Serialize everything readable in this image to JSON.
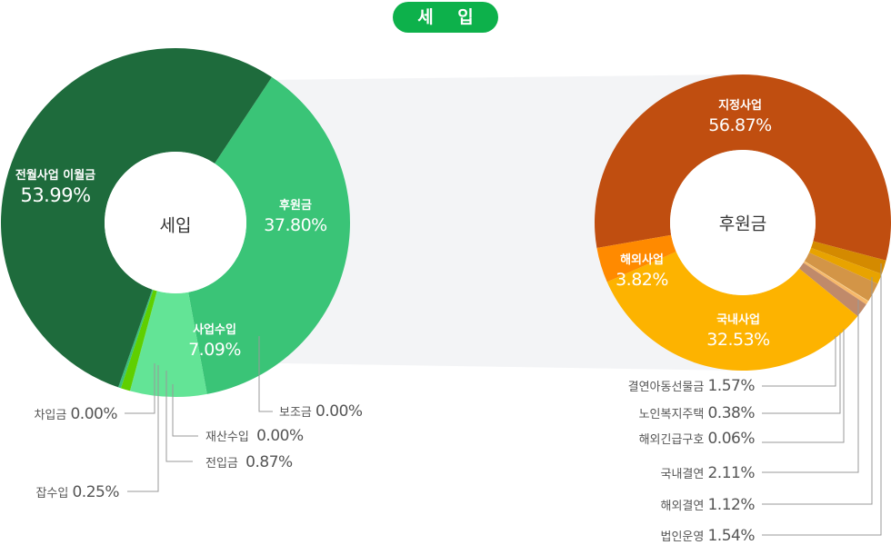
{
  "title": "세 입",
  "chart_data": [
    {
      "type": "pie",
      "donut": true,
      "title": "세입",
      "slices": [
        {
          "name": "후원금",
          "value": 37.8,
          "label": "37.80%",
          "color": "#3ac477"
        },
        {
          "name": "보조금",
          "value": 0.0,
          "label": "0.00%",
          "color": "#3ac477"
        },
        {
          "name": "사업수입",
          "value": 7.09,
          "label": "7.09%",
          "color": "#63e496"
        },
        {
          "name": "재산수입",
          "value": 0.0,
          "label": "0.00%",
          "color": "#63e496"
        },
        {
          "name": "전입금",
          "value": 0.87,
          "label": "0.87%",
          "color": "#5fcf00"
        },
        {
          "name": "잡수입",
          "value": 0.25,
          "label": "0.25%",
          "color": "#3bbf7a"
        },
        {
          "name": "차입금",
          "value": 0.0,
          "label": "0.00%",
          "color": "#3bbf7a"
        },
        {
          "name": "전월사업 이월금",
          "value": 53.99,
          "label": "53.99%",
          "color": "#1e6b3c"
        }
      ]
    },
    {
      "type": "pie",
      "donut": true,
      "title": "후원금",
      "slices": [
        {
          "name": "지정사업",
          "value": 56.87,
          "label": "56.87%",
          "color": "#c04e10"
        },
        {
          "name": "법인운영",
          "value": 1.54,
          "label": "1.54%",
          "color": "#d48a00"
        },
        {
          "name": "해외결연",
          "value": 1.12,
          "label": "1.12%",
          "color": "#e8a300"
        },
        {
          "name": "국내결연",
          "value": 2.11,
          "label": "2.11%",
          "color": "#d39547"
        },
        {
          "name": "해외긴급구호",
          "value": 0.06,
          "label": "0.06%",
          "color": "#f5d58a"
        },
        {
          "name": "노인복지주택",
          "value": 0.38,
          "label": "0.38%",
          "color": "#f7b86a"
        },
        {
          "name": "결연아동선물금",
          "value": 1.57,
          "label": "1.57%",
          "color": "#c08a6a"
        },
        {
          "name": "국내사업",
          "value": 32.53,
          "label": "32.53%",
          "color": "#fdb300"
        },
        {
          "name": "해외사업",
          "value": 3.82,
          "label": "3.82%",
          "color": "#ff8a00"
        }
      ]
    }
  ]
}
